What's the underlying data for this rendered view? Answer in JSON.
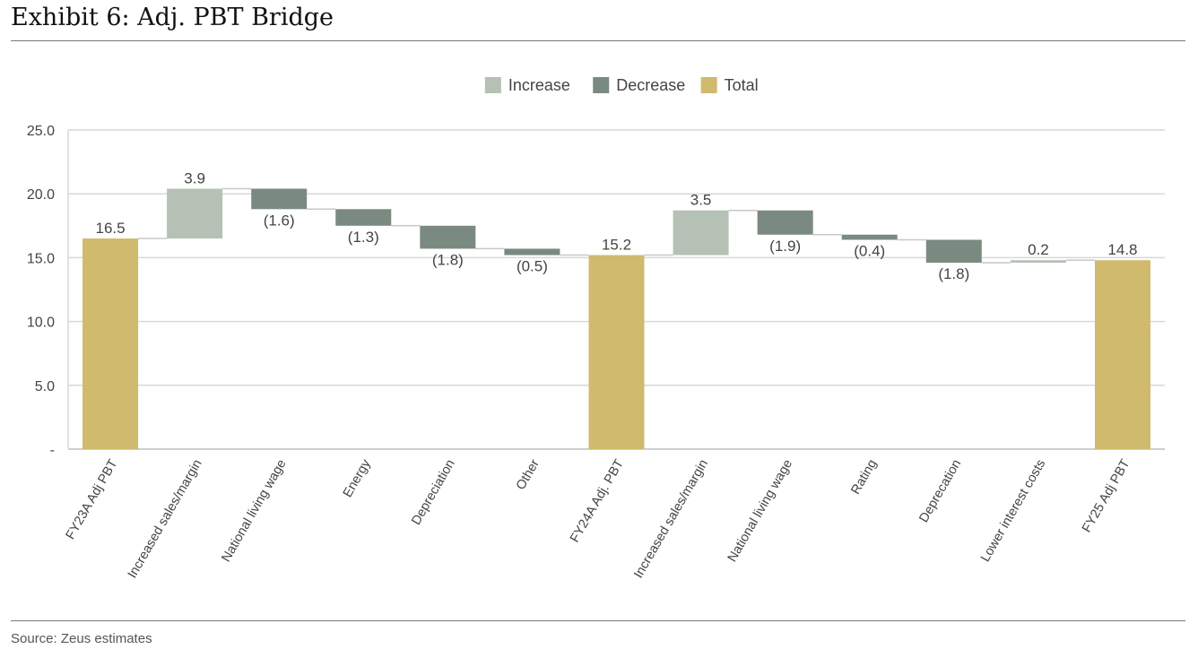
{
  "header": {
    "title": "Exhibit 6: Adj. PBT Bridge"
  },
  "footer": {
    "source": "Source: Zeus estimates"
  },
  "colors": {
    "increase": "#b5c1b4",
    "decrease": "#7b8a81",
    "total": "#cfba6e",
    "grid": "#d9d9d9",
    "connector": "#c8c8c8"
  },
  "chart_data": {
    "type": "bar",
    "subtype": "waterfall",
    "title": "Exhibit 6: Adj. PBT Bridge",
    "xlabel": "",
    "ylabel": "",
    "ylim": [
      0,
      25
    ],
    "yticks": [
      0,
      5,
      10,
      15,
      20,
      25
    ],
    "ytick_labels": [
      "-",
      "5.0",
      "10.0",
      "15.0",
      "20.0",
      "25.0"
    ],
    "grid": true,
    "legend_position": "top-center",
    "legend": [
      {
        "key": "increase",
        "label": "Increase"
      },
      {
        "key": "decrease",
        "label": "Decrease"
      },
      {
        "key": "total",
        "label": "Total"
      }
    ],
    "categories": [
      "FY23A Adj PBT",
      "Increased sales/margin",
      "National living wage",
      "Energy",
      "Depreciation",
      "Other",
      "FY24A Adj. PBT",
      "Increased sales/margin",
      "National living wage",
      "Rating",
      "Deprecation",
      "Lower interest costs",
      "FY25 Adj PBT"
    ],
    "values": [
      16.5,
      3.9,
      -1.6,
      -1.3,
      -1.8,
      -0.5,
      15.2,
      3.5,
      -1.9,
      -0.4,
      -1.8,
      0.2,
      14.8
    ],
    "kinds": [
      "total",
      "increase",
      "decrease",
      "decrease",
      "decrease",
      "decrease",
      "total",
      "increase",
      "decrease",
      "decrease",
      "decrease",
      "increase",
      "total"
    ],
    "value_labels": [
      "16.5",
      "3.9",
      "(1.6)",
      "(1.3)",
      "(1.8)",
      "(0.5)",
      "15.2",
      "3.5",
      "(1.9)",
      "(0.4)",
      "(1.8)",
      "0.2",
      "14.8"
    ]
  }
}
